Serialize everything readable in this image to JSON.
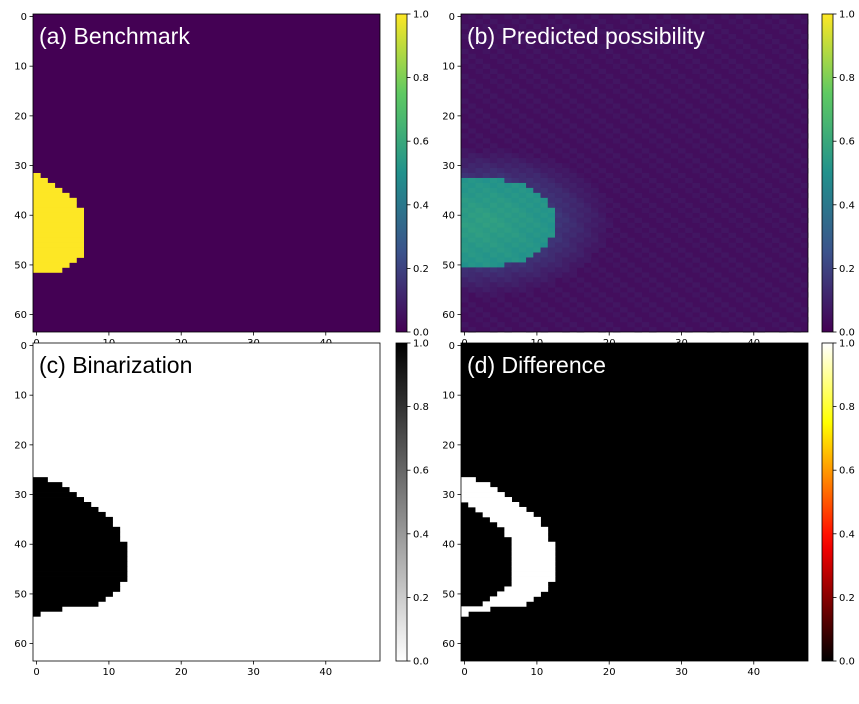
{
  "chart_data": [
    {
      "type": "heatmap",
      "title": "(a) Benchmark",
      "colormap": "viridis",
      "grid_shape": [
        64,
        48
      ],
      "xlim": [
        -0.5,
        47.5
      ],
      "ylim": [
        63.5,
        -0.5
      ],
      "xticks": [
        0,
        10,
        20,
        30,
        40
      ],
      "yticks": [
        0,
        10,
        20,
        30,
        40,
        50,
        60
      ],
      "colorbar": {
        "range": [
          0.0,
          1.0
        ],
        "ticks": [
          "0.0",
          "0.2",
          "0.4",
          "0.6",
          "0.8",
          "1.0"
        ]
      },
      "background_value": 0.0,
      "regions": [
        {
          "label": "defect",
          "value": 1.0,
          "row_extents": [
            [
              32,
              0,
              0
            ],
            [
              33,
              0,
              1
            ],
            [
              34,
              0,
              2
            ],
            [
              35,
              0,
              3
            ],
            [
              36,
              0,
              4
            ],
            [
              37,
              0,
              5
            ],
            [
              38,
              0,
              5
            ],
            [
              39,
              0,
              6
            ],
            [
              40,
              0,
              6
            ],
            [
              41,
              0,
              6
            ],
            [
              42,
              0,
              6
            ],
            [
              43,
              0,
              6
            ],
            [
              44,
              0,
              6
            ],
            [
              45,
              0,
              6
            ],
            [
              46,
              0,
              6
            ],
            [
              47,
              0,
              6
            ],
            [
              48,
              0,
              6
            ],
            [
              49,
              0,
              5
            ],
            [
              50,
              0,
              4
            ],
            [
              51,
              0,
              3
            ]
          ]
        }
      ]
    },
    {
      "type": "heatmap",
      "title": "(b) Predicted possibility",
      "colormap": "viridis",
      "grid_shape": [
        64,
        48
      ],
      "xlim": [
        -0.5,
        47.5
      ],
      "ylim": [
        63.5,
        -0.5
      ],
      "xticks": [
        0,
        10,
        20,
        30,
        40
      ],
      "yticks": [
        0,
        10,
        20,
        30,
        40,
        50,
        60
      ],
      "colorbar": {
        "range": [
          0.0,
          1.0
        ],
        "ticks": [
          "0.0",
          "0.2",
          "0.4",
          "0.6",
          "0.8",
          "1.0"
        ]
      },
      "background_value": 0.04,
      "blob": {
        "center_x": 2.5,
        "center_y": 41.5,
        "core_radius_x": 10,
        "core_radius_y": 9,
        "core_value": 0.55,
        "halo_radius_x": 18,
        "halo_radius_y": 15,
        "halo_value": 0.2
      }
    },
    {
      "type": "heatmap",
      "title": "(c) Binarization",
      "colormap": "gray_r",
      "grid_shape": [
        64,
        48
      ],
      "xlim": [
        -0.5,
        47.5
      ],
      "ylim": [
        63.5,
        -0.5
      ],
      "xticks": [
        0,
        10,
        20,
        30,
        40
      ],
      "yticks": [
        0,
        10,
        20,
        30,
        40,
        50,
        60
      ],
      "colorbar": {
        "range": [
          0.0,
          1.0
        ],
        "ticks": [
          "0.0",
          "0.2",
          "0.4",
          "0.6",
          "0.8",
          "1.0"
        ]
      },
      "background_value": 0.0,
      "regions": [
        {
          "label": "defect",
          "value": 1.0,
          "row_extents": [
            [
              27,
              0,
              1
            ],
            [
              28,
              0,
              3
            ],
            [
              29,
              0,
              4
            ],
            [
              30,
              0,
              5
            ],
            [
              31,
              0,
              6
            ],
            [
              32,
              0,
              7
            ],
            [
              33,
              0,
              8
            ],
            [
              34,
              0,
              9
            ],
            [
              35,
              0,
              10
            ],
            [
              36,
              0,
              10
            ],
            [
              37,
              0,
              11
            ],
            [
              38,
              0,
              11
            ],
            [
              39,
              0,
              11
            ],
            [
              40,
              0,
              12
            ],
            [
              41,
              0,
              12
            ],
            [
              42,
              0,
              12
            ],
            [
              43,
              0,
              12
            ],
            [
              44,
              0,
              12
            ],
            [
              45,
              0,
              12
            ],
            [
              46,
              0,
              12
            ],
            [
              47,
              0,
              12
            ],
            [
              48,
              0,
              11
            ],
            [
              49,
              0,
              11
            ],
            [
              50,
              0,
              10
            ],
            [
              51,
              0,
              9
            ],
            [
              52,
              0,
              8
            ],
            [
              53,
              0,
              3
            ],
            [
              54,
              0,
              0
            ]
          ]
        }
      ]
    },
    {
      "type": "heatmap",
      "title": "(d) Difference",
      "colormap": "hot",
      "grid_shape": [
        64,
        48
      ],
      "xlim": [
        -0.5,
        47.5
      ],
      "ylim": [
        63.5,
        -0.5
      ],
      "xticks": [
        0,
        10,
        20,
        30,
        40
      ],
      "yticks": [
        0,
        10,
        20,
        30,
        40,
        50,
        60
      ],
      "colorbar": {
        "range": [
          0.0,
          1.0
        ],
        "ticks": [
          "0.0",
          "0.2",
          "0.4",
          "0.6",
          "0.8",
          "1.0"
        ]
      },
      "background_value": 0.0,
      "regions": [
        {
          "label": "difference",
          "value": 1.0,
          "row_segments": [
            [
              27,
              0,
              1
            ],
            [
              28,
              0,
              3
            ],
            [
              29,
              0,
              4
            ],
            [
              30,
              0,
              5
            ],
            [
              31,
              0,
              6
            ],
            [
              32,
              1,
              7
            ],
            [
              33,
              2,
              8
            ],
            [
              34,
              3,
              9
            ],
            [
              35,
              4,
              10
            ],
            [
              36,
              5,
              10
            ],
            [
              37,
              6,
              11
            ],
            [
              38,
              6,
              11
            ],
            [
              39,
              7,
              11
            ],
            [
              40,
              7,
              12
            ],
            [
              41,
              7,
              12
            ],
            [
              42,
              7,
              12
            ],
            [
              43,
              7,
              12
            ],
            [
              44,
              7,
              12
            ],
            [
              45,
              7,
              12
            ],
            [
              46,
              7,
              12
            ],
            [
              47,
              7,
              12
            ],
            [
              48,
              7,
              11
            ],
            [
              49,
              6,
              11
            ],
            [
              50,
              5,
              10
            ],
            [
              51,
              4,
              9
            ],
            [
              52,
              3,
              8
            ],
            [
              53,
              0,
              3
            ],
            [
              54,
              0,
              0
            ]
          ]
        }
      ]
    }
  ]
}
